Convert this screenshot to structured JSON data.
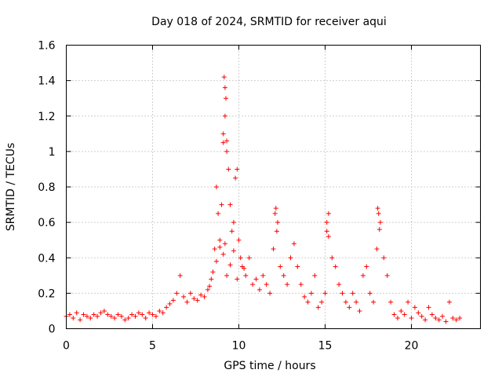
{
  "chart_data": {
    "type": "scatter",
    "title": "Day 018 of 2024, SRMTID for receiver aqui",
    "xlabel": "GPS time / hours",
    "ylabel": "SRMTID / TECUs",
    "xlim": [
      0,
      24
    ],
    "ylim": [
      0,
      1.6
    ],
    "xticks": [
      0,
      5,
      10,
      15,
      20
    ],
    "yticks": [
      0,
      0.2,
      0.4,
      0.6,
      0.8,
      1,
      1.2,
      1.4,
      1.6
    ],
    "xtick_labels": [
      "0",
      "5",
      "10",
      "15",
      "20"
    ],
    "ytick_labels": [
      "0",
      "0.2",
      "0.4",
      "0.6",
      "0.8",
      "1",
      "1.2",
      "1.4",
      "1.6"
    ],
    "grid": true,
    "legend": "none",
    "marker": "plus",
    "color": "#ff0000",
    "series": [
      {
        "name": "SRMTID",
        "x": [
          0.0,
          0.2,
          0.4,
          0.6,
          0.8,
          1.0,
          1.2,
          1.4,
          1.6,
          1.8,
          2.0,
          2.2,
          2.4,
          2.6,
          2.8,
          3.0,
          3.2,
          3.4,
          3.6,
          3.8,
          4.0,
          4.2,
          4.4,
          4.6,
          4.8,
          5.0,
          5.2,
          5.4,
          5.6,
          5.8,
          6.0,
          6.2,
          6.4,
          6.6,
          6.8,
          7.0,
          7.2,
          7.4,
          7.6,
          7.8,
          8.0,
          8.2,
          8.4,
          8.6,
          8.7,
          8.8,
          8.9,
          9.0,
          9.1,
          9.2,
          9.3,
          9.4,
          9.5,
          9.6,
          9.7,
          9.8,
          9.9,
          10.0,
          10.2,
          10.4,
          10.6,
          10.8,
          11.0,
          11.2,
          11.4,
          11.6,
          11.8,
          12.0,
          12.1,
          12.2,
          12.4,
          12.6,
          12.8,
          13.0,
          13.2,
          13.4,
          13.6,
          13.8,
          14.0,
          14.2,
          14.4,
          14.6,
          14.8,
          15.0,
          15.1,
          15.2,
          15.4,
          15.6,
          15.8,
          16.0,
          16.2,
          16.4,
          16.6,
          16.8,
          17.0,
          17.2,
          17.4,
          17.6,
          17.8,
          18.0,
          18.1,
          18.2,
          18.4,
          18.6,
          18.8,
          19.0,
          19.2,
          19.4,
          19.6,
          19.8,
          20.0,
          20.2,
          20.4,
          20.6,
          20.8,
          21.0,
          21.2,
          21.4,
          21.6,
          21.8,
          22.0,
          22.2,
          22.4,
          22.6,
          22.8,
          8.3,
          8.5,
          8.7,
          8.9,
          9.1,
          9.2,
          9.3,
          9.5,
          9.7,
          9.9,
          10.1,
          10.3,
          12.15,
          12.25,
          15.1,
          15.2,
          18.05,
          18.15,
          9.15,
          9.2,
          9.25,
          9.1,
          9.3
        ],
        "y": [
          0.07,
          0.08,
          0.06,
          0.09,
          0.05,
          0.08,
          0.07,
          0.06,
          0.08,
          0.07,
          0.09,
          0.1,
          0.08,
          0.07,
          0.06,
          0.08,
          0.07,
          0.05,
          0.06,
          0.08,
          0.07,
          0.09,
          0.08,
          0.06,
          0.09,
          0.08,
          0.07,
          0.1,
          0.09,
          0.12,
          0.14,
          0.16,
          0.2,
          0.3,
          0.18,
          0.15,
          0.2,
          0.17,
          0.16,
          0.19,
          0.18,
          0.22,
          0.28,
          0.45,
          0.8,
          0.65,
          0.5,
          0.7,
          1.05,
          1.2,
          1.0,
          0.9,
          0.7,
          0.55,
          0.6,
          0.85,
          0.9,
          0.5,
          0.35,
          0.3,
          0.4,
          0.25,
          0.28,
          0.22,
          0.3,
          0.25,
          0.2,
          0.45,
          0.65,
          0.55,
          0.35,
          0.3,
          0.25,
          0.4,
          0.48,
          0.35,
          0.25,
          0.18,
          0.15,
          0.2,
          0.3,
          0.12,
          0.15,
          0.2,
          0.55,
          0.65,
          0.4,
          0.35,
          0.25,
          0.2,
          0.15,
          0.12,
          0.2,
          0.15,
          0.1,
          0.3,
          0.35,
          0.2,
          0.15,
          0.45,
          0.65,
          0.6,
          0.4,
          0.3,
          0.15,
          0.08,
          0.06,
          0.1,
          0.08,
          0.15,
          0.06,
          0.12,
          0.09,
          0.07,
          0.05,
          0.12,
          0.08,
          0.06,
          0.05,
          0.07,
          0.04,
          0.15,
          0.06,
          0.05,
          0.06,
          0.24,
          0.32,
          0.38,
          0.46,
          0.42,
          0.48,
          0.3,
          0.36,
          0.44,
          0.28,
          0.4,
          0.34,
          0.68,
          0.6,
          0.6,
          0.52,
          0.68,
          0.56,
          1.42,
          1.36,
          1.3,
          1.1,
          1.06
        ]
      }
    ]
  }
}
